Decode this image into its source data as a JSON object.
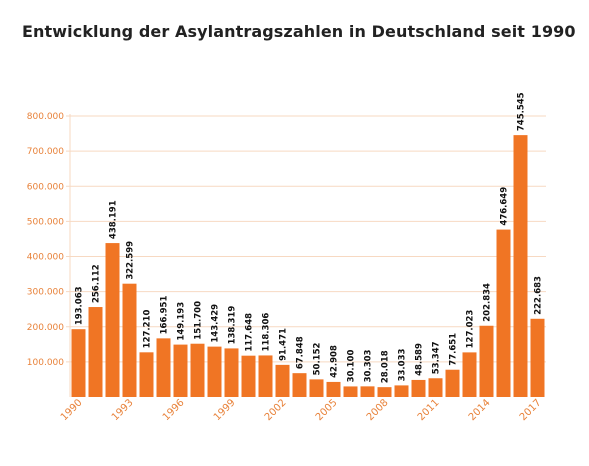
{
  "title": "Entwicklung der Asylantragszahlen in Deutschland seit 1990",
  "colors": {
    "bar": "#f07524",
    "grid": "#f7d9c2",
    "axis_text": "#e8823a"
  },
  "chart_data": {
    "type": "bar",
    "title": "Entwicklung der Asylantragszahlen in Deutschland seit 1990",
    "xlabel": "",
    "ylabel": "",
    "ylim": [
      0,
      800000
    ],
    "yticks": [
      100000,
      200000,
      300000,
      400000,
      500000,
      600000,
      700000,
      800000
    ],
    "ytick_labels": [
      "100.000",
      "200.000",
      "300.000",
      "400.000",
      "500.000",
      "600.000",
      "700.000",
      "800.000"
    ],
    "grid": true,
    "categories": [
      1990,
      1991,
      1992,
      1993,
      1994,
      1995,
      1996,
      1997,
      1998,
      1999,
      2000,
      2001,
      2002,
      2003,
      2004,
      2005,
      2006,
      2007,
      2008,
      2009,
      2010,
      2011,
      2012,
      2013,
      2014,
      2015,
      2016,
      2017
    ],
    "x_tick_labels": [
      "1990",
      "1993",
      "1996",
      "1999",
      "2002",
      "2005",
      "2008",
      "2011",
      "2014",
      "2017"
    ],
    "x_tick_indices": [
      0,
      3,
      6,
      9,
      12,
      15,
      18,
      21,
      24,
      27
    ],
    "values": [
      193063,
      256112,
      438191,
      322599,
      127210,
      166951,
      149193,
      151700,
      143429,
      138319,
      117648,
      118306,
      91471,
      67848,
      50152,
      42908,
      30100,
      30303,
      28018,
      33033,
      48589,
      53347,
      77651,
      127023,
      202834,
      476649,
      745545,
      222683
    ],
    "value_labels": [
      "193.063",
      "256.112",
      "438.191",
      "322.599",
      "127.210",
      "166.951",
      "149.193",
      "151.700",
      "143.429",
      "138.319",
      "117.648",
      "118.306",
      "91.471",
      "67.848",
      "50.152",
      "42.908",
      "30.100",
      "30.303",
      "28.018",
      "33.033",
      "48.589",
      "53.347",
      "77.651",
      "127.023",
      "202.834",
      "476.649",
      "745.545",
      "222.683"
    ]
  }
}
